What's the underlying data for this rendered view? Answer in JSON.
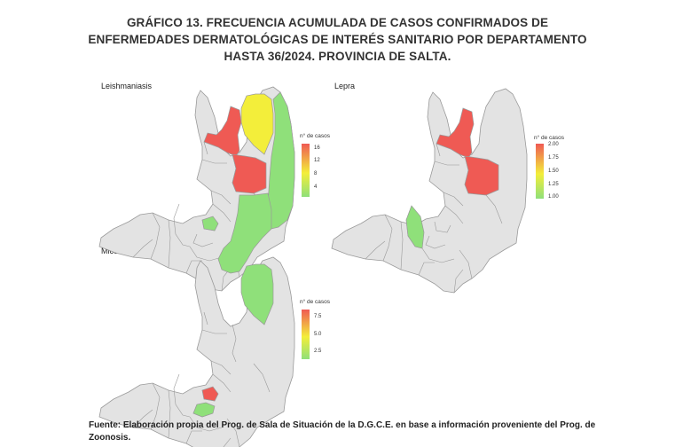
{
  "title": "GRÁFICO 13. FRECUENCIA ACUMULADA DE CASOS CONFIRMADOS DE ENFERMEDADES DERMATOLÓGICAS DE INTERÉS SANITARIO POR DEPARTAMENTO HASTA 36/2024. PROVINCIA DE SALTA.",
  "colors": {
    "low": "#8fe07a",
    "mid": "#f3ee3a",
    "high": "#ef5a54",
    "no_data": "#e3e3e3",
    "border": "#9a9a9a"
  },
  "panels": [
    {
      "label": "Leishmaniasis",
      "legend": {
        "title": "n° de casos",
        "ticks": [
          "16",
          "12",
          "8",
          "4"
        ],
        "min": 1,
        "max": 17
      },
      "highlighted": [
        {
          "department": "norte-oeste",
          "level": "high"
        },
        {
          "department": "norte-este",
          "level": "mid"
        },
        {
          "department": "centro-norte",
          "level": "high"
        },
        {
          "department": "este",
          "level": "low"
        },
        {
          "department": "sureste",
          "level": "low"
        },
        {
          "department": "centro-chico",
          "level": "low"
        }
      ]
    },
    {
      "label": "Lepra",
      "legend": {
        "title": "n° de casos",
        "ticks": [
          "2.00",
          "1.75",
          "1.50",
          "1.25",
          "1.00"
        ],
        "min": 1.0,
        "max": 2.0
      },
      "highlighted": [
        {
          "department": "norte-oeste",
          "level": "high"
        },
        {
          "department": "centro-norte",
          "level": "high"
        },
        {
          "department": "centro-oeste",
          "level": "low"
        }
      ]
    },
    {
      "label": "Micosis profundas",
      "legend": {
        "title": "n° de casos",
        "ticks": [
          "7.5",
          "5.0",
          "2.5"
        ],
        "min": 1,
        "max": 9
      },
      "highlighted": [
        {
          "department": "norte-este",
          "level": "low"
        },
        {
          "department": "centro-chico",
          "level": "high"
        },
        {
          "department": "centro-sur",
          "level": "low"
        }
      ]
    }
  ],
  "source": "Fuente: Elaboración propia del Prog. de Sala de Situación de la D.G.C.E. en base a información proveniente del Prog. de Zoonosis."
}
